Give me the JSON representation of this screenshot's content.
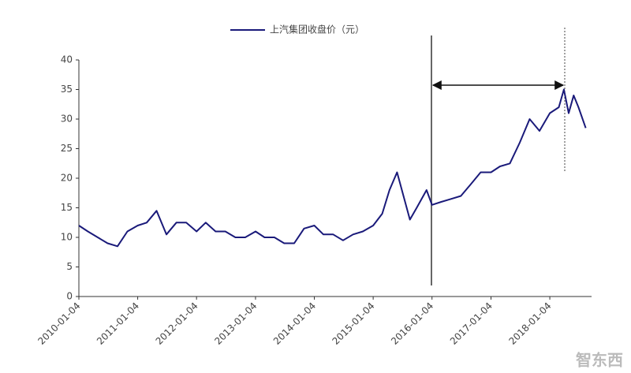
{
  "chart_data": {
    "type": "line",
    "x": [
      "2010-01-04",
      "2010-03-01",
      "2010-05-01",
      "2010-07-01",
      "2010-09-01",
      "2010-11-01",
      "2011-01-04",
      "2011-03-01",
      "2011-05-01",
      "2011-07-01",
      "2011-09-01",
      "2011-11-01",
      "2012-01-04",
      "2012-03-01",
      "2012-05-01",
      "2012-07-01",
      "2012-09-01",
      "2012-11-01",
      "2013-01-04",
      "2013-03-01",
      "2013-05-01",
      "2013-07-01",
      "2013-09-01",
      "2013-11-01",
      "2014-01-04",
      "2014-03-01",
      "2014-05-01",
      "2014-07-01",
      "2014-09-01",
      "2014-11-01",
      "2015-01-04",
      "2015-03-01",
      "2015-04-15",
      "2015-06-01",
      "2015-08-20",
      "2015-10-01",
      "2015-12-01",
      "2016-01-04",
      "2016-03-01",
      "2016-05-01",
      "2016-07-01",
      "2016-09-01",
      "2016-11-01",
      "2017-01-04",
      "2017-03-01",
      "2017-05-01",
      "2017-07-01",
      "2017-09-01",
      "2017-11-01",
      "2018-01-04",
      "2018-03-01",
      "2018-04-01",
      "2018-05-01",
      "2018-06-01",
      "2018-07-01",
      "2018-08-15"
    ],
    "series": [
      {
        "name": "上汽集团收盘价（元）",
        "color": "#1a1a7a",
        "values": [
          12,
          11,
          10,
          9,
          8.5,
          11,
          12,
          12.5,
          14.5,
          10.5,
          12.5,
          12.5,
          11,
          12.5,
          11,
          11,
          10,
          10,
          11,
          10,
          10,
          9,
          9,
          11.5,
          12,
          10.5,
          10.5,
          9.5,
          10.5,
          11,
          12,
          14,
          18,
          21,
          13,
          15,
          18,
          15.5,
          16,
          16.5,
          17,
          19,
          21,
          21,
          22,
          22.5,
          26,
          30,
          28,
          31,
          32,
          35,
          31,
          34,
          32,
          28.5
        ]
      }
    ],
    "xlim": [
      "2010-01-04",
      "2018-09-20"
    ],
    "xticks": [
      "2010-01-04",
      "2011-01-04",
      "2012-01-04",
      "2013-01-04",
      "2014-01-04",
      "2015-01-04",
      "2016-01-04",
      "2017-01-04",
      "2018-01-04"
    ],
    "ylim": [
      0,
      40
    ],
    "yticks": [
      0,
      5,
      10,
      15,
      20,
      25,
      30,
      35,
      40
    ],
    "watermark": "智东西"
  }
}
